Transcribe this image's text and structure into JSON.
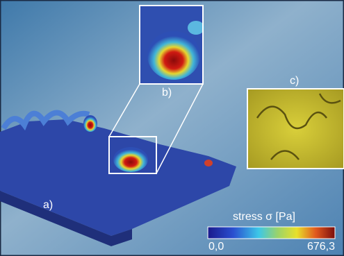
{
  "panels": {
    "a": "a)",
    "b": "b)",
    "c": "c)"
  },
  "colorbar": {
    "title": "stress σ [Pa]",
    "min_label": "0,0",
    "max_label": "676,3"
  }
}
